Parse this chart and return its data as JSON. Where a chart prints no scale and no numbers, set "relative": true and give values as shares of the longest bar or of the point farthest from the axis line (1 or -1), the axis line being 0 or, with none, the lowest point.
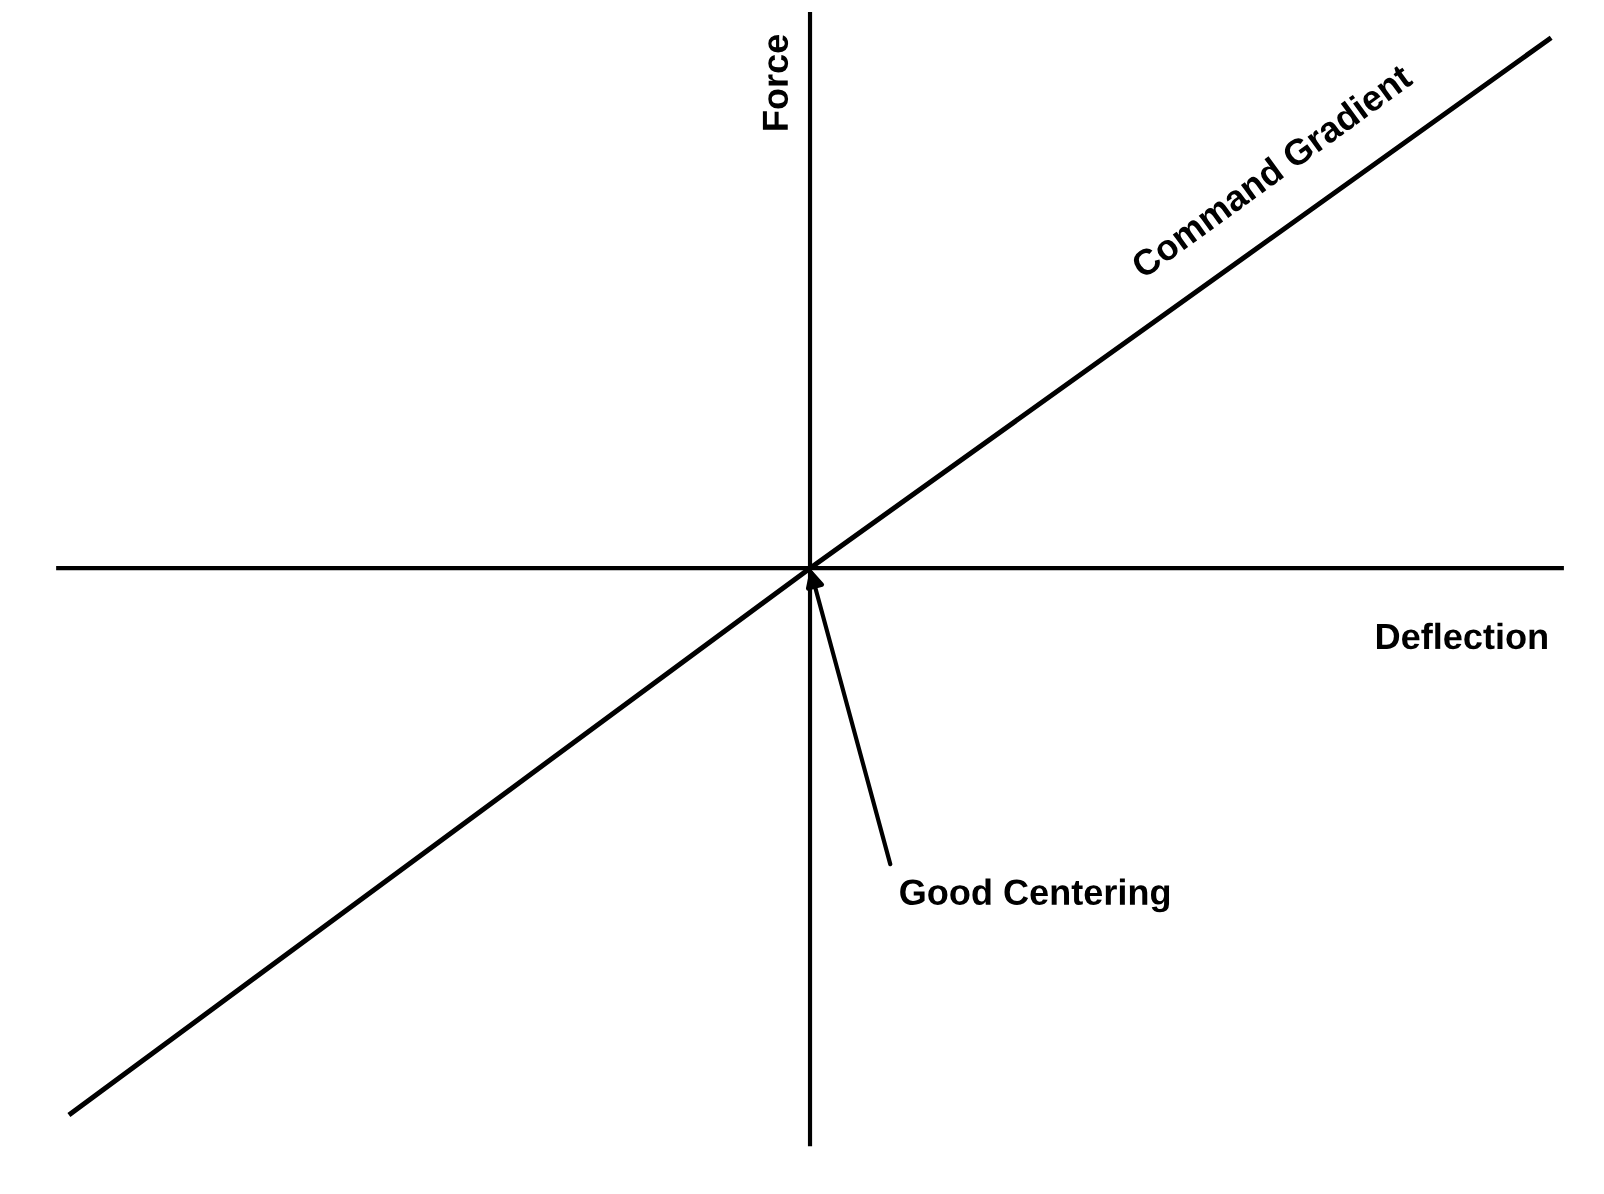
{
  "chart_data": {
    "type": "line",
    "relative": true,
    "xlabel": "Deflection",
    "ylabel": "Force",
    "categories": [
      null,
      null,
      null
    ],
    "series": [
      {
        "name": "Command Gradient",
        "color": "#000000",
        "values": [
          -1,
          0,
          0.97
        ]
      }
    ],
    "annotations": [
      "Good Centering"
    ],
    "grid": false,
    "legend": false,
    "marker": "none",
    "line_style": "solid"
  }
}
